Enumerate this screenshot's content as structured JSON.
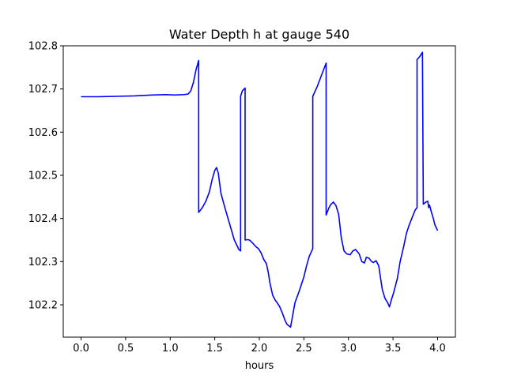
{
  "chart_data": {
    "type": "line",
    "title": "Water Depth h at gauge 540",
    "xlabel": "hours",
    "ylabel": "",
    "xlim": [
      -0.2,
      4.2
    ],
    "ylim": [
      102.125,
      102.8
    ],
    "xticks": [
      0.0,
      0.5,
      1.0,
      1.5,
      2.0,
      2.5,
      3.0,
      3.5,
      4.0
    ],
    "xtick_labels": [
      "0.0",
      "0.5",
      "1.0",
      "1.5",
      "2.0",
      "2.5",
      "3.0",
      "3.5",
      "4.0"
    ],
    "yticks": [
      102.2,
      102.3,
      102.4,
      102.5,
      102.6,
      102.7,
      102.8
    ],
    "ytick_labels": [
      "102.2",
      "102.3",
      "102.4",
      "102.5",
      "102.6",
      "102.7",
      "102.8"
    ],
    "grid": false,
    "series": [
      {
        "color": "#0000ff",
        "x": [
          0.0,
          0.2,
          0.4,
          0.6,
          0.8,
          0.95,
          1.05,
          1.15,
          1.2,
          1.23,
          1.26,
          1.29,
          1.32,
          1.32,
          1.36,
          1.4,
          1.44,
          1.47,
          1.5,
          1.52,
          1.54,
          1.57,
          1.62,
          1.67,
          1.72,
          1.77,
          1.79,
          1.79,
          1.81,
          1.83,
          1.84,
          1.84,
          1.87,
          1.89,
          1.91,
          1.93,
          1.95,
          1.97,
          1.99,
          2.02,
          2.05,
          2.08,
          2.1,
          2.12,
          2.15,
          2.18,
          2.2,
          2.23,
          2.26,
          2.29,
          2.31,
          2.35,
          2.4,
          2.45,
          2.5,
          2.53,
          2.56,
          2.6,
          2.6,
          2.65,
          2.7,
          2.75,
          2.75,
          2.78,
          2.8,
          2.83,
          2.86,
          2.89,
          2.92,
          2.95,
          2.98,
          3.02,
          3.05,
          3.08,
          3.12,
          3.15,
          3.18,
          3.2,
          3.23,
          3.26,
          3.28,
          3.31,
          3.34,
          3.36,
          3.38,
          3.41,
          3.44,
          3.46,
          3.48,
          3.51,
          3.55,
          3.58,
          3.62,
          3.65,
          3.68,
          3.72,
          3.75,
          3.77,
          3.77,
          3.8,
          3.83,
          3.84,
          3.87,
          3.89,
          3.9,
          3.91,
          3.93,
          3.95,
          3.97,
          4.0
        ],
        "y": [
          102.682,
          102.682,
          102.683,
          102.684,
          102.686,
          102.687,
          102.686,
          102.687,
          102.688,
          102.695,
          102.715,
          102.745,
          102.766,
          102.414,
          102.425,
          102.44,
          102.462,
          102.49,
          102.511,
          102.518,
          102.505,
          102.458,
          102.42,
          102.385,
          102.35,
          102.328,
          102.325,
          102.683,
          102.696,
          102.7,
          102.702,
          102.35,
          102.351,
          102.35,
          102.346,
          102.342,
          102.337,
          102.333,
          102.33,
          102.32,
          102.305,
          102.295,
          102.275,
          102.25,
          102.222,
          102.21,
          102.205,
          102.195,
          102.18,
          102.163,
          102.155,
          102.148,
          102.205,
          102.233,
          102.265,
          102.29,
          102.312,
          102.33,
          102.683,
          102.706,
          102.733,
          102.76,
          102.408,
          102.424,
          102.432,
          102.438,
          102.43,
          102.41,
          102.355,
          102.325,
          102.318,
          102.316,
          102.325,
          102.328,
          102.318,
          102.3,
          102.297,
          102.31,
          102.308,
          102.3,
          102.298,
          102.302,
          102.29,
          102.262,
          102.235,
          102.215,
          102.205,
          102.195,
          102.21,
          102.23,
          102.262,
          102.3,
          102.335,
          102.365,
          102.384,
          102.405,
          102.42,
          102.425,
          102.768,
          102.775,
          102.785,
          102.433,
          102.438,
          102.44,
          102.425,
          102.431,
          102.415,
          102.402,
          102.385,
          102.372
        ]
      }
    ]
  }
}
